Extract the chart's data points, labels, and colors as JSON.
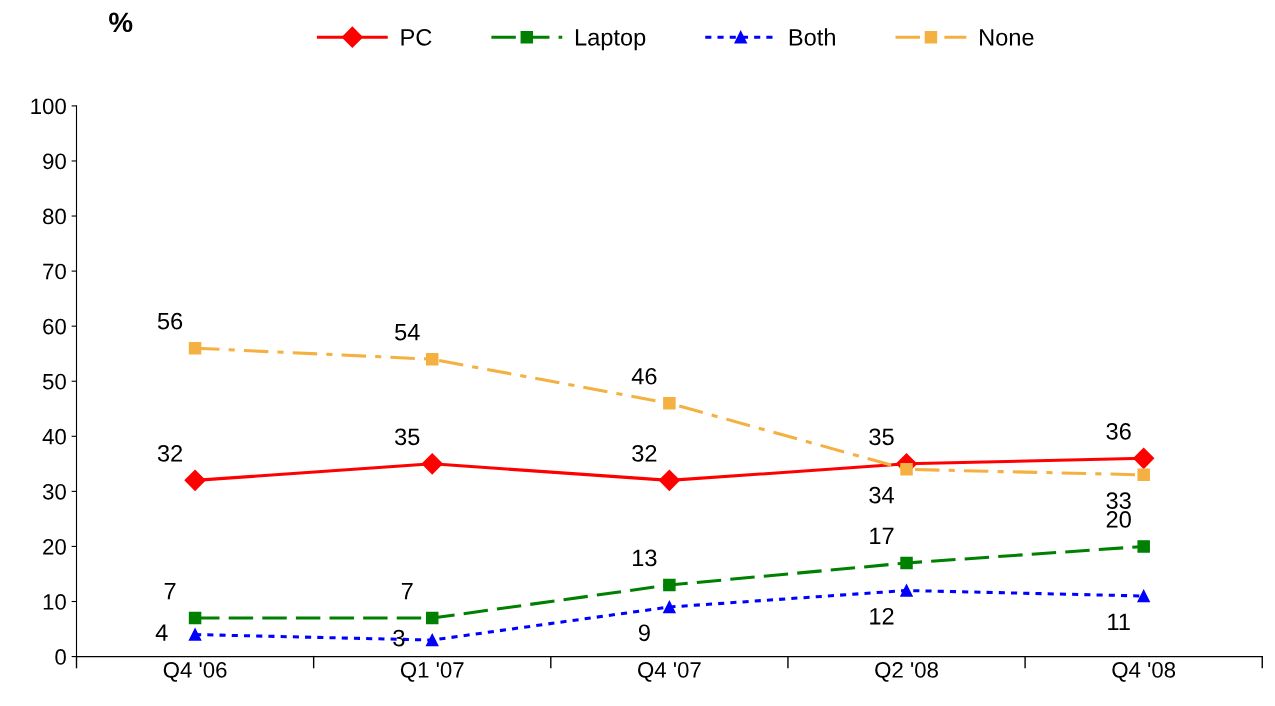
{
  "chart_data": {
    "type": "line",
    "ylabel": "%",
    "categories": [
      "Q4 '06",
      "Q1 '07",
      "Q4 '07",
      "Q2 '08",
      "Q4 '08"
    ],
    "series": [
      {
        "name": "PC",
        "color": "#ff0000",
        "values": [
          32,
          35,
          32,
          35,
          36
        ],
        "marker": "diamond",
        "line_style": "solid"
      },
      {
        "name": "Laptop",
        "color": "#008000",
        "values": [
          7,
          7,
          13,
          17,
          20
        ],
        "marker": "square",
        "line_style": "dashed"
      },
      {
        "name": "Both",
        "color": "#0000ff",
        "values": [
          4,
          3,
          9,
          12,
          11
        ],
        "marker": "triangle",
        "line_style": "dotted"
      },
      {
        "name": "None",
        "color": "#f4b040",
        "values": [
          56,
          54,
          46,
          34,
          33
        ],
        "marker": "square",
        "line_style": "dashdot"
      }
    ],
    "ylim": [
      0,
      100
    ],
    "yticks": [
      0,
      10,
      20,
      30,
      40,
      50,
      60,
      70,
      80,
      90,
      100
    ],
    "grid": false,
    "legend": "top",
    "data_labels": true
  }
}
